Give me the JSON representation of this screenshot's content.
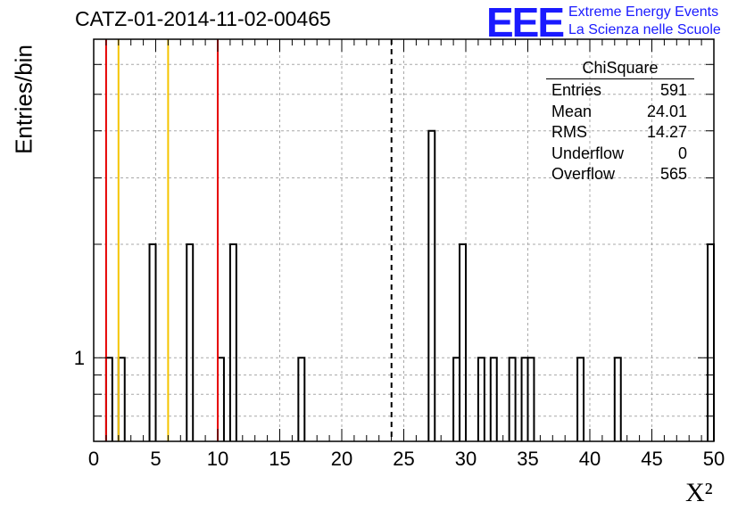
{
  "title": "CATZ-01-2014-11-02-00465",
  "logo": {
    "mark": "EEE",
    "line1": "Extreme Energy Events",
    "line2": "La Scienza nelle Scuole"
  },
  "stats": {
    "title": "ChiSquare",
    "rows": [
      {
        "label": "Entries",
        "value": "591"
      },
      {
        "label": "Mean",
        "value": "24.01"
      },
      {
        "label": "RMS",
        "value": "14.27"
      },
      {
        "label": "Underflow",
        "value": "0"
      },
      {
        "label": "Overflow",
        "value": "565"
      }
    ]
  },
  "chart_data": {
    "type": "bar",
    "title": "CATZ-01-2014-11-02-00465",
    "xlabel": "X²",
    "ylabel": "Entries/bin",
    "xlim": [
      0,
      50
    ],
    "ylim": [
      0.6,
      7
    ],
    "yscale": "log",
    "xticks": [
      0,
      5,
      10,
      15,
      20,
      25,
      30,
      35,
      40,
      45,
      50
    ],
    "yticks": [
      1
    ],
    "grid": true,
    "bin_width": 0.5,
    "bins": [
      {
        "x": 1.0,
        "count": 1
      },
      {
        "x": 2.0,
        "count": 1
      },
      {
        "x": 4.5,
        "count": 2
      },
      {
        "x": 7.5,
        "count": 2
      },
      {
        "x": 10.0,
        "count": 1
      },
      {
        "x": 11.0,
        "count": 2
      },
      {
        "x": 16.5,
        "count": 1
      },
      {
        "x": 27.0,
        "count": 4
      },
      {
        "x": 29.0,
        "count": 1
      },
      {
        "x": 29.5,
        "count": 2
      },
      {
        "x": 31.0,
        "count": 1
      },
      {
        "x": 32.0,
        "count": 1
      },
      {
        "x": 33.5,
        "count": 1
      },
      {
        "x": 34.5,
        "count": 1
      },
      {
        "x": 35.0,
        "count": 1
      },
      {
        "x": 39.0,
        "count": 1
      },
      {
        "x": 42.0,
        "count": 1
      },
      {
        "x": 49.5,
        "count": 2
      }
    ],
    "markers": [
      {
        "x": 1,
        "color": "#e60000",
        "style": "solid"
      },
      {
        "x": 2,
        "color": "#f5c400",
        "style": "solid"
      },
      {
        "x": 6,
        "color": "#f5c400",
        "style": "solid"
      },
      {
        "x": 10,
        "color": "#e60000",
        "style": "solid"
      },
      {
        "x": 24.01,
        "color": "#000000",
        "style": "dashed"
      }
    ]
  }
}
